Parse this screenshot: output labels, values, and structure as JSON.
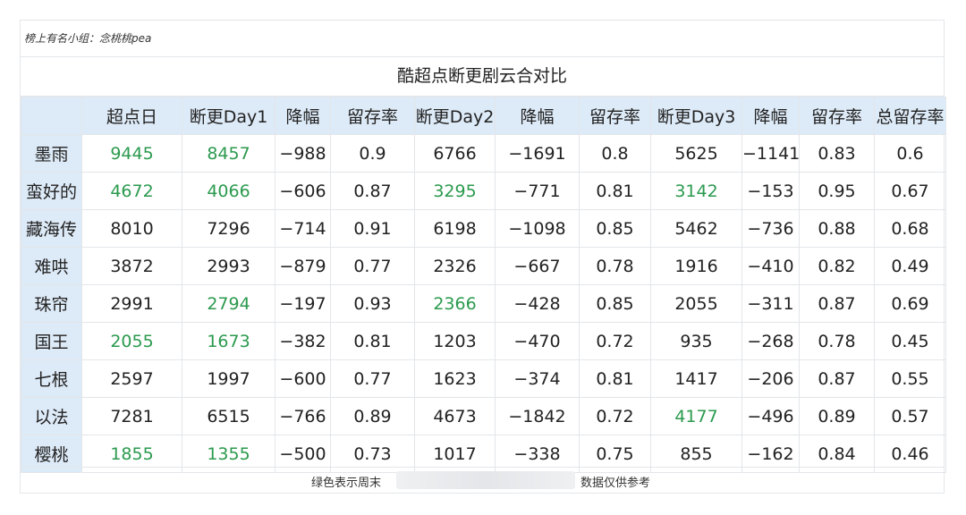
{
  "group_label": "榜上有名小组：念桃桃pea",
  "title": "酷超点断更剧云合对比",
  "columns": [
    "",
    "超点日",
    "断更Day1",
    "降幅",
    "留存率",
    "断更Day2",
    "降幅",
    "留存率",
    "断更Day3",
    "降幅",
    "留存率",
    "总留存率"
  ],
  "rows": [
    {
      "cells": [
        "墨雨",
        "9445",
        "8457",
        "−988",
        "0.9",
        "6766",
        "−1691",
        "0.8",
        "5625",
        "−1141",
        "0.83",
        "0.6"
      ],
      "green": [
        1,
        2
      ]
    },
    {
      "cells": [
        "蛮好的",
        "4672",
        "4066",
        "−606",
        "0.87",
        "3295",
        "−771",
        "0.81",
        "3142",
        "−153",
        "0.95",
        "0.67"
      ],
      "green": [
        1,
        2,
        5,
        8
      ]
    },
    {
      "cells": [
        "藏海传",
        "8010",
        "7296",
        "−714",
        "0.91",
        "6198",
        "−1098",
        "0.85",
        "5462",
        "−736",
        "0.88",
        "0.68"
      ],
      "green": []
    },
    {
      "cells": [
        "难哄",
        "3872",
        "2993",
        "−879",
        "0.77",
        "2326",
        "−667",
        "0.78",
        "1916",
        "−410",
        "0.82",
        "0.49"
      ],
      "green": []
    },
    {
      "cells": [
        "珠帘",
        "2991",
        "2794",
        "−197",
        "0.93",
        "2366",
        "−428",
        "0.85",
        "2055",
        "−311",
        "0.87",
        "0.69"
      ],
      "green": [
        2,
        5
      ]
    },
    {
      "cells": [
        "国王",
        "2055",
        "1673",
        "−382",
        "0.81",
        "1203",
        "−470",
        "0.72",
        "935",
        "−268",
        "0.78",
        "0.45"
      ],
      "green": [
        1,
        2
      ]
    },
    {
      "cells": [
        "七根",
        "2597",
        "1997",
        "−600",
        "0.77",
        "1623",
        "−374",
        "0.81",
        "1417",
        "−206",
        "0.87",
        "0.55"
      ],
      "green": []
    },
    {
      "cells": [
        "以法",
        "7281",
        "6515",
        "−766",
        "0.89",
        "4673",
        "−1842",
        "0.72",
        "4177",
        "−496",
        "0.89",
        "0.57"
      ],
      "green": [
        8
      ]
    },
    {
      "cells": [
        "樱桃",
        "1855",
        "1355",
        "−500",
        "0.73",
        "1017",
        "−338",
        "0.75",
        "855",
        "−162",
        "0.84",
        "0.46"
      ],
      "green": [
        1,
        2
      ]
    }
  ],
  "footer": {
    "left_note": "绿色表示周末",
    "right_note": "数据仅供参考"
  },
  "colors": {
    "highlight": "#2b9a4e",
    "header_bg": "#ddeaf7"
  }
}
